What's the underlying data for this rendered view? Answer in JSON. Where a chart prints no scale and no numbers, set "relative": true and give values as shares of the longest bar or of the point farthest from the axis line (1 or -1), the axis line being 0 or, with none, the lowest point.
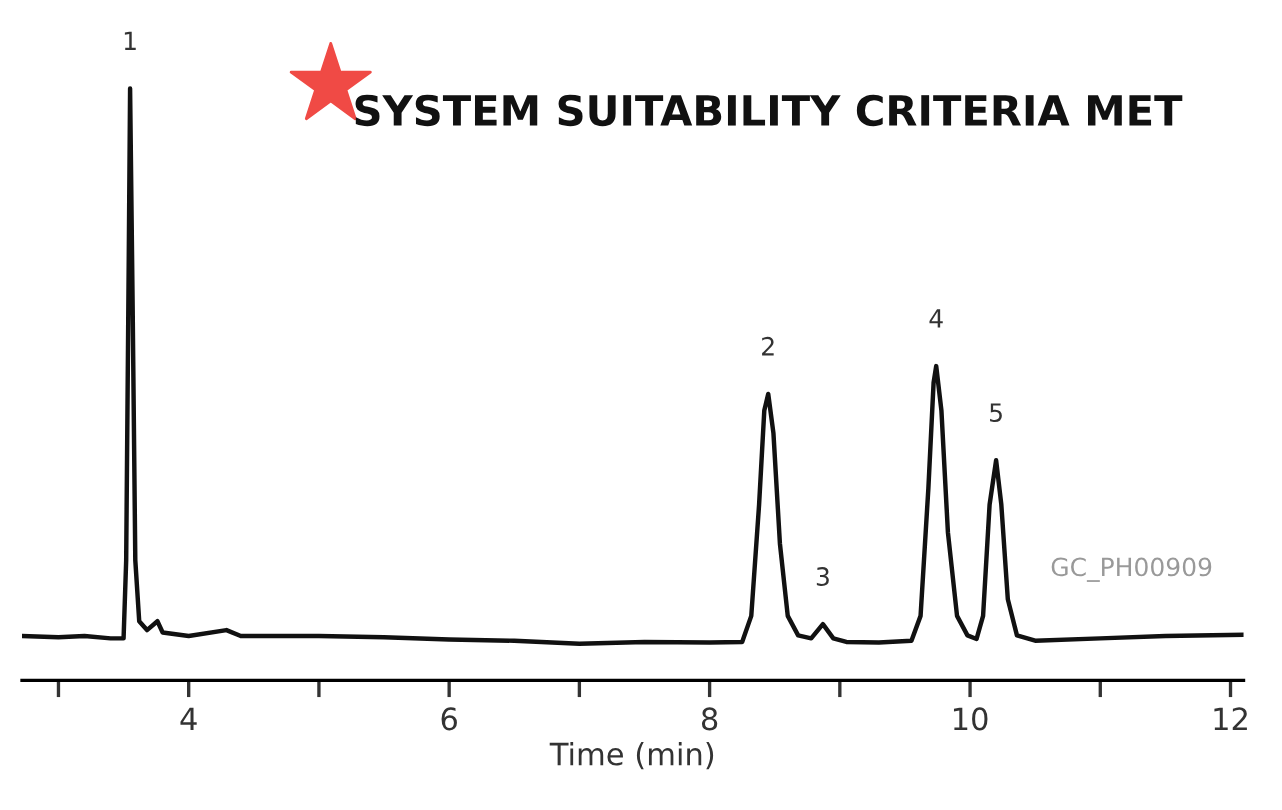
{
  "chart_data": {
    "type": "line",
    "title": "SYSTEM SUITABILITY CRITERIA MET",
    "xlabel": "Time (min)",
    "relative": true,
    "tick_labels": "x",
    "grid": false,
    "legend": false,
    "marker": "none",
    "line_style": "solid",
    "xlim": [
      2.72,
      12.1
    ],
    "xticks": [
      {
        "value": 3,
        "label": null
      },
      4,
      {
        "value": 5,
        "label": null
      },
      6,
      {
        "value": 7,
        "label": null
      },
      8,
      {
        "value": 9,
        "label": null
      },
      10,
      {
        "value": 11,
        "label": null
      },
      12
    ],
    "series": [
      {
        "color": "#111111",
        "x": [
          2.72,
          3.0,
          3.2,
          3.4,
          3.5,
          3.52,
          3.54,
          3.55,
          3.57,
          3.59,
          3.62,
          3.68,
          3.76,
          3.8,
          4.0,
          4.29,
          4.4,
          5.0,
          5.5,
          6.0,
          6.5,
          7.0,
          7.5,
          8.0,
          8.25,
          8.32,
          8.38,
          8.42,
          8.45,
          8.49,
          8.54,
          8.6,
          8.68,
          8.78,
          8.87,
          8.95,
          9.05,
          9.3,
          9.55,
          9.62,
          9.68,
          9.72,
          9.74,
          9.78,
          9.83,
          9.9,
          9.98,
          10.05,
          10.1,
          10.15,
          10.2,
          10.24,
          10.29,
          10.36,
          10.5,
          11.0,
          11.5,
          12.1
        ],
        "values": [
          0.075,
          0.073,
          0.075,
          0.071,
          0.071,
          0.203,
          0.719,
          1,
          0.625,
          0.203,
          0.1,
          0.085,
          0.1,
          0.081,
          0.075,
          0.085,
          0.075,
          0.075,
          0.073,
          0.069,
          0.067,
          0.062,
          0.065,
          0.064,
          0.065,
          0.109,
          0.297,
          0.456,
          0.484,
          0.418,
          0.231,
          0.109,
          0.076,
          0.071,
          0.095,
          0.071,
          0.065,
          0.064,
          0.067,
          0.109,
          0.325,
          0.503,
          0.531,
          0.456,
          0.25,
          0.109,
          0.076,
          0.07,
          0.109,
          0.297,
          0.372,
          0.297,
          0.137,
          0.076,
          0.067,
          0.071,
          0.075,
          0.077
        ]
      }
    ],
    "annotations": [
      {
        "text": "1",
        "x": 3.55,
        "y": 1
      },
      {
        "text": "2",
        "x": 8.45,
        "y": 0.484
      },
      {
        "text": "3",
        "x": 8.87,
        "y": 0.095
      },
      {
        "text": "4",
        "x": 9.74,
        "y": 0.531
      },
      {
        "text": "5",
        "x": 10.2,
        "y": 0.372
      },
      "GC_PH00909"
    ]
  }
}
